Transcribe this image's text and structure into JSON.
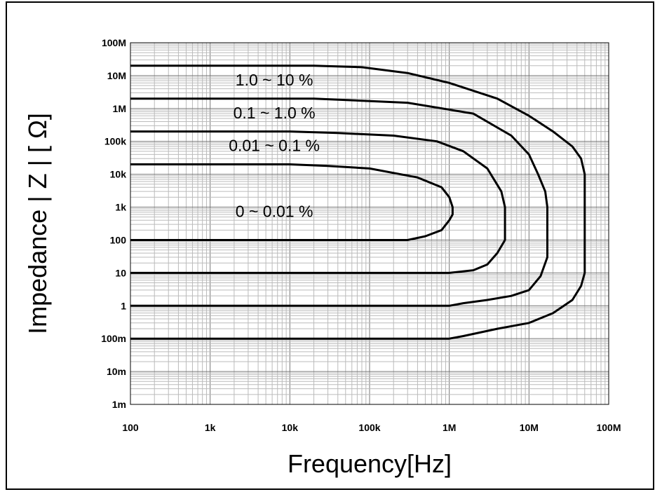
{
  "chart_data": {
    "type": "line",
    "title": "",
    "xlabel": "Frequency[Hz]",
    "ylabel": "Impedance | Z | [ Ω]",
    "x_scale": "log",
    "y_scale": "log",
    "xlim": [
      100,
      100000000
    ],
    "ylim": [
      0.001,
      100000000
    ],
    "grid": true,
    "x_ticks": [
      {
        "value": 100,
        "label": "100"
      },
      {
        "value": 1000,
        "label": "1k"
      },
      {
        "value": 10000,
        "label": "10k"
      },
      {
        "value": 100000,
        "label": "100k"
      },
      {
        "value": 1000000,
        "label": "1M"
      },
      {
        "value": 10000000,
        "label": "10M"
      },
      {
        "value": 100000000,
        "label": "100M"
      }
    ],
    "y_ticks": [
      {
        "value": 100000000,
        "label": "100M"
      },
      {
        "value": 10000000,
        "label": "10M"
      },
      {
        "value": 1000000,
        "label": "1M"
      },
      {
        "value": 100000,
        "label": "100k"
      },
      {
        "value": 10000,
        "label": "10k"
      },
      {
        "value": 1000,
        "label": "1k"
      },
      {
        "value": 100,
        "label": "100"
      },
      {
        "value": 10,
        "label": "10"
      },
      {
        "value": 1,
        "label": "1"
      },
      {
        "value": 0.1,
        "label": "100m"
      },
      {
        "value": 0.01,
        "label": "10m"
      },
      {
        "value": 0.001,
        "label": "1m"
      }
    ],
    "region_labels": [
      {
        "text": "1.0 ~ 10 %",
        "x": 5000,
        "y": 10000000
      },
      {
        "text": "0.1 ~ 1.0 %",
        "x": 5000,
        "y": 1000000
      },
      {
        "text": "0.01 ~ 0.1 %",
        "x": 5000,
        "y": 100000
      },
      {
        "text": "0 ~ 0.01 %",
        "x": 5000,
        "y": 1000
      }
    ],
    "series": [
      {
        "points": [
          [
            100,
            100
          ],
          [
            10000,
            100
          ],
          [
            300000,
            100
          ],
          [
            500000,
            130
          ],
          [
            800000,
            200
          ],
          [
            1000000,
            400
          ],
          [
            1100000,
            600
          ],
          [
            1100000,
            1000
          ],
          [
            1000000,
            2000
          ],
          [
            800000,
            4000
          ],
          [
            400000,
            8000
          ],
          [
            100000,
            15000
          ],
          [
            30000,
            18000
          ],
          [
            10000,
            20000
          ],
          [
            100,
            20000
          ]
        ]
      },
      {
        "points": [
          [
            100,
            10
          ],
          [
            1000000,
            10
          ],
          [
            2000000,
            12
          ],
          [
            3000000,
            18
          ],
          [
            4000000,
            40
          ],
          [
            5000000,
            100
          ],
          [
            5000000,
            1000
          ],
          [
            4500000,
            3000
          ],
          [
            3000000,
            15000
          ],
          [
            1500000,
            50000
          ],
          [
            700000,
            100000
          ],
          [
            200000,
            150000
          ],
          [
            40000,
            180000
          ],
          [
            10000,
            200000
          ],
          [
            100,
            200000
          ]
        ]
      },
      {
        "points": [
          [
            100,
            1
          ],
          [
            1000000,
            1
          ],
          [
            1500000,
            1.2
          ],
          [
            3000000,
            1.5
          ],
          [
            6000000,
            2
          ],
          [
            10000000,
            3
          ],
          [
            14000000,
            8
          ],
          [
            17000000,
            30
          ],
          [
            17000000,
            1000
          ],
          [
            16000000,
            3000
          ],
          [
            13000000,
            10000
          ],
          [
            10000000,
            40000
          ],
          [
            6000000,
            150000
          ],
          [
            2000000,
            700000
          ],
          [
            300000,
            1500000
          ],
          [
            20000,
            2000000
          ],
          [
            100,
            2000000
          ]
        ]
      },
      {
        "points": [
          [
            100,
            0.1
          ],
          [
            1000000,
            0.1
          ],
          [
            1500000,
            0.12
          ],
          [
            4000000,
            0.2
          ],
          [
            10000000,
            0.3
          ],
          [
            20000000,
            0.6
          ],
          [
            35000000,
            1.5
          ],
          [
            45000000,
            4
          ],
          [
            50000000,
            10
          ],
          [
            50000000,
            10000
          ],
          [
            45000000,
            30000
          ],
          [
            35000000,
            70000
          ],
          [
            20000000,
            200000
          ],
          [
            10000000,
            600000
          ],
          [
            4000000,
            2000000
          ],
          [
            1000000,
            6000000
          ],
          [
            300000,
            12000000
          ],
          [
            80000,
            18000000
          ],
          [
            20000,
            20000000
          ],
          [
            100,
            20000000
          ]
        ]
      }
    ]
  }
}
